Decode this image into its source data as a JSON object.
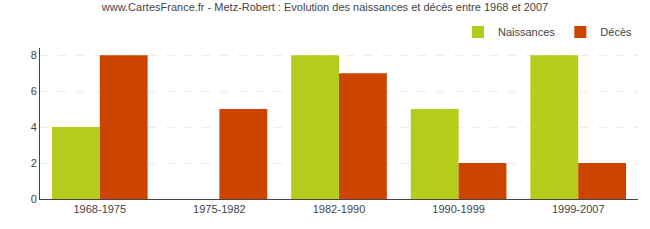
{
  "chart_data": {
    "type": "bar",
    "title": "www.CartesFrance.fr - Metz-Robert : Evolution des naissances et décès entre 1968 et 2007",
    "categories": [
      "1968-1975",
      "1975-1982",
      "1982-1990",
      "1990-1999",
      "1999-2007"
    ],
    "series": [
      {
        "name": "Naissances",
        "color": "#b5cc1a",
        "values": [
          4,
          0,
          8,
          5,
          8
        ]
      },
      {
        "name": "Décès",
        "color": "#cc4400",
        "values": [
          8,
          5,
          7,
          2,
          2
        ]
      }
    ],
    "ylim": [
      0,
      8.4
    ],
    "yticks": [
      0,
      2,
      4,
      6,
      8
    ],
    "grid": true,
    "legend": "upper right"
  }
}
